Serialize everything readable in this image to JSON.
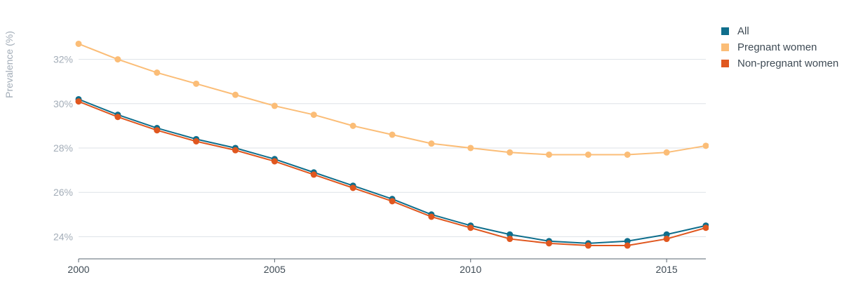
{
  "chart_data": {
    "type": "line",
    "title": "",
    "xlabel": "",
    "ylabel": "Prevalence (%)",
    "x": [
      2000,
      2001,
      2002,
      2003,
      2004,
      2005,
      2006,
      2007,
      2008,
      2009,
      2010,
      2011,
      2012,
      2013,
      2014,
      2015,
      2016
    ],
    "xlim": [
      2000,
      2016
    ],
    "ylim": [
      23,
      33.6
    ],
    "x_ticks": [
      2000,
      2005,
      2010,
      2015
    ],
    "y_ticks": [
      24,
      26,
      28,
      30,
      32
    ],
    "y_tick_labels": [
      "24%",
      "26%",
      "28%",
      "30%",
      "32%"
    ],
    "grid": "horizontal",
    "legend_position": "top-right",
    "series": [
      {
        "name": "All",
        "color": "#0f6e8c",
        "values": [
          30.2,
          29.5,
          28.9,
          28.4,
          28.0,
          27.5,
          26.9,
          26.3,
          25.7,
          25.0,
          24.5,
          24.1,
          23.8,
          23.7,
          23.8,
          24.1,
          24.5
        ]
      },
      {
        "name": "Pregnant women",
        "color": "#fbbd77",
        "values": [
          32.7,
          32.0,
          31.4,
          30.9,
          30.4,
          29.9,
          29.5,
          29.0,
          28.6,
          28.2,
          28.0,
          27.8,
          27.7,
          27.7,
          27.7,
          27.8,
          28.1
        ]
      },
      {
        "name": "Non-pregnant women",
        "color": "#e0571f",
        "values": [
          30.1,
          29.4,
          28.8,
          28.3,
          27.9,
          27.4,
          26.8,
          26.2,
          25.6,
          24.9,
          24.4,
          23.9,
          23.7,
          23.6,
          23.6,
          23.9,
          24.4
        ]
      }
    ]
  },
  "legend": {
    "items": [
      {
        "label": "All",
        "color": "#0f6e8c"
      },
      {
        "label": "Pregnant women",
        "color": "#fbbd77"
      },
      {
        "label": "Non-pregnant women",
        "color": "#e0571f"
      }
    ]
  }
}
